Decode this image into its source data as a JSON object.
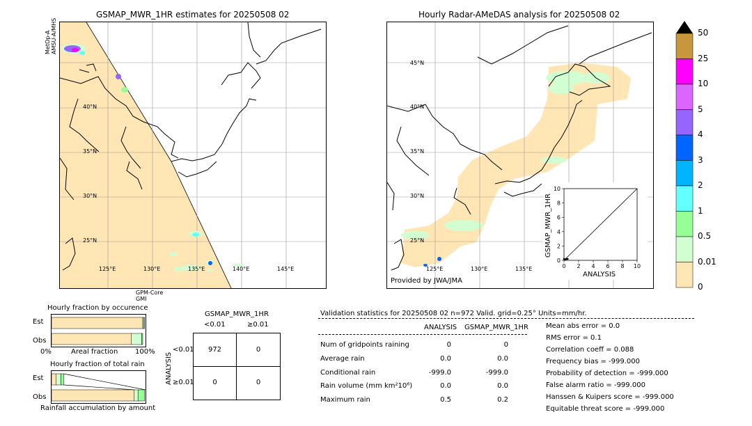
{
  "left_map": {
    "title": "GSMAP_MWR_1HR estimates for 20250508 02",
    "sat_label_top": "MetOp-A\nAMSU-A/MHS",
    "sat_label_bottom": "GPM-Core\nGMI",
    "lat_labels": [
      "40°N",
      "35°N",
      "30°N",
      "25°N"
    ],
    "lon_labels": [
      "125°E",
      "130°E",
      "135°E",
      "140°E",
      "145°E"
    ]
  },
  "right_map": {
    "title": "Hourly Radar-AMeDAS analysis for 20250508 02",
    "lat_labels": [
      "45°N",
      "40°N",
      "35°N",
      "30°N",
      "25°N"
    ],
    "lon_labels": [
      "125°E",
      "130°E",
      "135°E"
    ],
    "credit": "Provided by JWA/JMA"
  },
  "colorbar": {
    "ticks": [
      "50",
      "25",
      "10",
      "5",
      "4",
      "3",
      "2",
      "1",
      "0.5",
      "0.01",
      "0"
    ],
    "colors": [
      "#c8963c",
      "#ff00ff",
      "#dc64ff",
      "#9664ff",
      "#0064ff",
      "#00b4ff",
      "#64ffff",
      "#96ff96",
      "#d2ffd2",
      "#ffe6b4"
    ]
  },
  "chart_data": [
    {
      "type": "scatter",
      "title": "",
      "xlabel": "ANALYSIS",
      "ylabel": "GSMAP_MWR_1HR",
      "xlim": [
        0,
        10
      ],
      "ylim": [
        0,
        10
      ],
      "xticks": [
        "0",
        "2",
        "4",
        "6",
        "8",
        "10"
      ],
      "yticks": [
        "0",
        "2",
        "4",
        "6",
        "8",
        "10"
      ],
      "points": [
        [
          0.1,
          0.1
        ],
        [
          0.2,
          0.1
        ],
        [
          0.3,
          0.2
        ],
        [
          0.5,
          0.2
        ],
        [
          0.0,
          0.2
        ]
      ],
      "reference_line": [
        [
          0,
          0
        ],
        [
          10,
          10
        ]
      ]
    },
    {
      "type": "bar",
      "title": "Hourly fraction by occurence",
      "categories": [
        "Est",
        "Obs"
      ],
      "xlabel": "Areal fraction",
      "x_ticks": [
        "0%",
        "100%"
      ],
      "series": [
        {
          "values": [
            0.97,
            0.85
          ],
          "color": "#ffe6b4"
        },
        {
          "values": [
            0.01,
            0.11
          ],
          "color": "#d2ffd2"
        },
        {
          "values": [
            0.01,
            0.01
          ],
          "color": "#96ff96"
        }
      ]
    },
    {
      "type": "bar",
      "title": "Hourly fraction of total rain",
      "categories": [
        "Est",
        "Obs"
      ],
      "xlabel": "Rainfall accumulation by amount",
      "series": [
        {
          "values": [
            0.05,
            0.88
          ],
          "color": "#ffe6b4"
        },
        {
          "values": [
            0.05,
            0.04
          ],
          "color": "#d2ffd2"
        },
        {
          "values": [
            0.03,
            0.07
          ],
          "color": "#96ff96"
        }
      ]
    }
  ],
  "contingency": {
    "title": "GSMAP_MWR_1HR",
    "col_headers": [
      "<0.01",
      "≥0.01"
    ],
    "row_headers": [
      "<0.01",
      "≥0.01"
    ],
    "side_label": "ANALYSIS",
    "cells": [
      [
        "972",
        "0"
      ],
      [
        "0",
        "0"
      ]
    ]
  },
  "validation": {
    "header": "Validation statistics for 20250508 02  n=972 Valid. grid=0.25° Units=mm/hr.",
    "col1": "ANALYSIS",
    "col2": "GSMAP_MWR_1HR",
    "rows": [
      {
        "label": "Num of gridpoints raining",
        "a": "0",
        "b": "0"
      },
      {
        "label": "Average rain",
        "a": "0.0",
        "b": "0.0"
      },
      {
        "label": "Conditional rain",
        "a": "-999.0",
        "b": "-999.0"
      },
      {
        "label": "Rain volume (mm km²10⁶)",
        "a": "0.0",
        "b": "0.0"
      },
      {
        "label": "Maximum rain",
        "a": "0.5",
        "b": "0.2"
      }
    ],
    "scores": [
      "Mean abs error =    0.0",
      "RMS error =    0.1",
      "Correlation coeff =  0.088",
      "Frequency bias = -999.000",
      "Probability of detection = -999.000",
      "False alarm ratio = -999.000",
      "Hanssen & Kuipers score = -999.000",
      "Equitable threat score = -999.000"
    ]
  }
}
